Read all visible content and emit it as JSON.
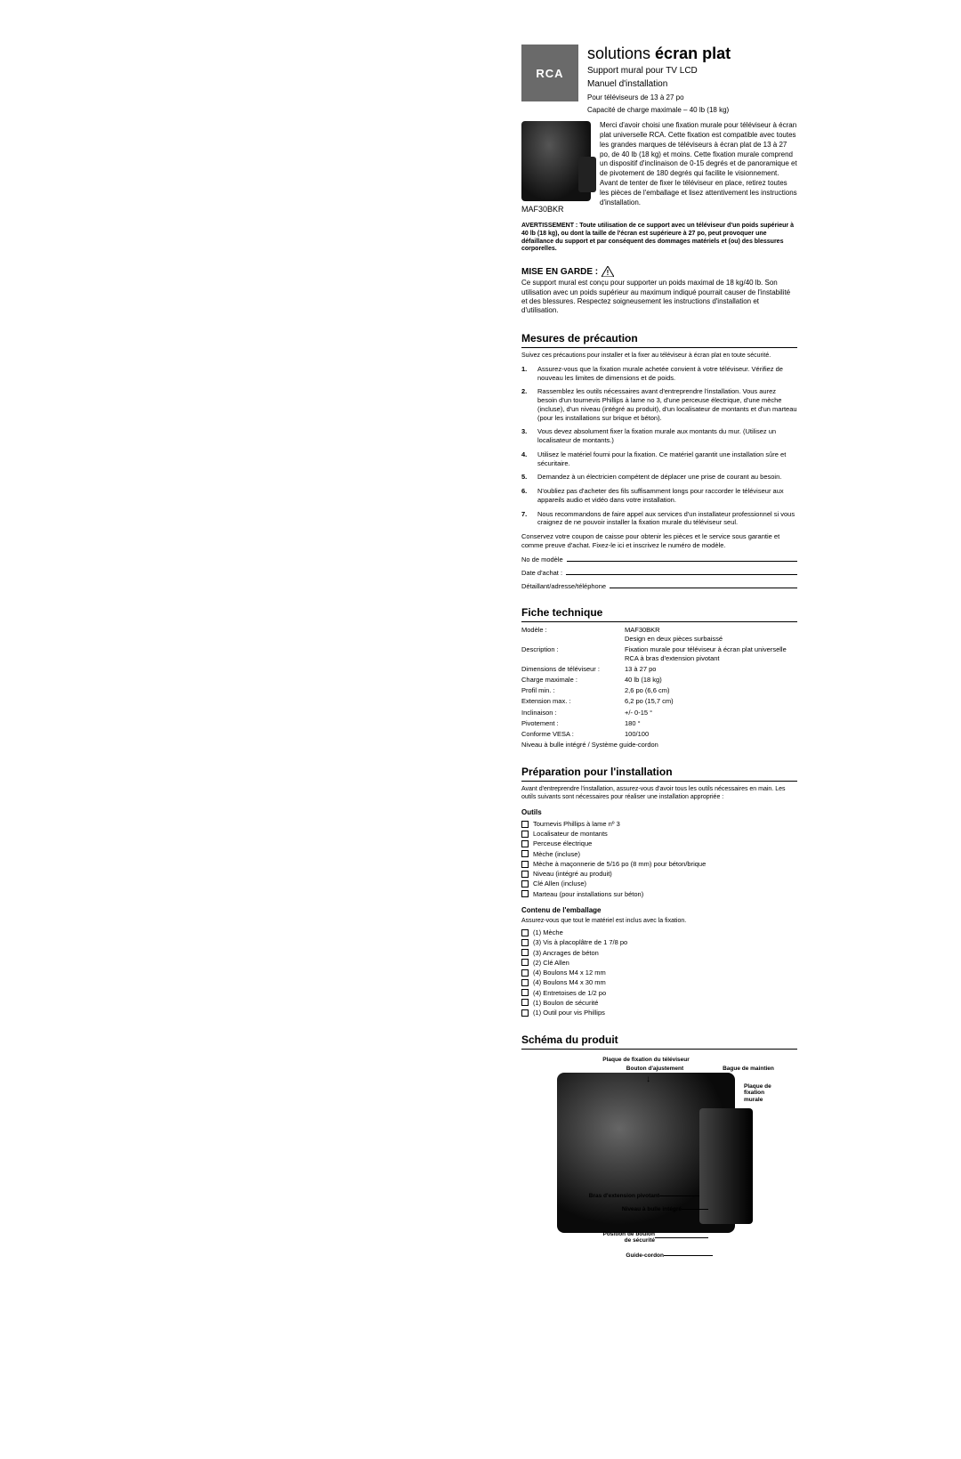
{
  "brand": "RCA",
  "title_light": "solutions ",
  "title_bold": "écran plat",
  "subtitle1": "Support mural pour TV LCD",
  "subtitle2": "Manuel d'installation",
  "size_line": "Pour téléviseurs de 13 à 27 po",
  "capacity_line": "Capacité de charge maximale –  40 lb (18 kg)",
  "model": "MAF30BKR",
  "intro": "Merci d'avoir choisi une fixation murale pour téléviseur à écran plat universelle RCA. Cette fixation est compatible avec toutes les grandes marques de téléviseurs à écran plat de 13 à 27 po, de 40 lb (18 kg) et moins. Cette fixation murale comprend un dispositif d'inclinaison de 0-15 degrés et de panoramique et de pivotement de 180 degrés qui facilite le visionnement. Avant de tenter de fixer le téléviseur en place, retirez toutes les pièces de l'emballage et lisez attentivement les instructions d'installation.",
  "warning_label": "AVERTISSEMENT : ",
  "warning_text": "Toute utilisation de ce support avec un téléviseur d'un poids supérieur à 40 lb (18 kg), ou dont la taille de l'écran est supérieure à 27 po, peut provoquer une défaillance du support et par conséquent des dommages matériels et (ou) des blessures corporelles.",
  "caution_title": "MISE EN GARDE :",
  "caution_body": "Ce support mural est conçu pour supporter un poids maximal de 18 kg/40 lb. Son utilisation avec un poids supérieur au maximum indiqué pourrait causer de l'instabilité et des blessures. Respectez soigneusement les instructions d'installation et d'utilisation.",
  "precautions_title": "Mesures de précaution",
  "precautions_intro": "Suivez ces précautions pour installer et la fixer au téléviseur à écran plat en toute sécurité.",
  "precautions": [
    "Assurez-vous que la fixation murale achetée convient à votre téléviseur. Vérifiez de nouveau les limites de dimensions et de poids.",
    "Rassemblez les outils nécessaires avant d'entreprendre l'installation. Vous aurez besoin d'un tournevis Phillips à lame no 3, d'une perceuse électrique, d'une mèche (incluse), d'un niveau (intégré au produit), d'un localisateur de montants et d'un marteau (pour les installations sur brique et béton).",
    "Vous devez absolument fixer la fixation murale aux montants du mur. (Utilisez un localisateur de montants.)",
    "Utilisez le matériel fourni pour la fixation. Ce matériel garantit une installation sûre et sécuritaire.",
    "Demandez à un électricien compétent de déplacer une prise de courant au besoin.",
    "N'oubliez pas d'acheter des fils suffisamment longs pour raccorder le téléviseur aux appareils audio et vidéo dans votre installation.",
    "Nous recommandons de faire appel aux services d'un installateur professionnel si vous craignez de ne pouvoir installer la fixation murale du téléviseur seul."
  ],
  "keep_receipt": "Conservez votre coupon de caisse pour obtenir les pièces et le service sous garantie et comme preuve d'achat. Fixez-le ici et inscrivez le numéro de modèle.",
  "fill_model": "No de modèle",
  "fill_date": "Date d'achat :",
  "fill_dealer": "Détaillant/adresse/téléphone",
  "spec_title": "Fiche technique",
  "specs": [
    {
      "k": "Modèle :",
      "v": "MAF30BKR\nDesign en deux pièces surbaissé"
    },
    {
      "k": "Description :",
      "v": "Fixation murale pour téléviseur à écran plat universelle RCA à bras d'extension pivotant"
    },
    {
      "k": "Dimensions de téléviseur :",
      "v": "13 à 27 po"
    },
    {
      "k": "Charge maximale :",
      "v": "40 lb (18 kg)"
    },
    {
      "k": "Profil min. :",
      "v": "2,6 po (6,6 cm)"
    },
    {
      "k": "Extension max. :",
      "v": "6,2 po (15,7 cm)"
    },
    {
      "k": "Inclinaison :",
      "v": "+/- 0-15 °"
    },
    {
      "k": "Pivotement :",
      "v": "180 °"
    },
    {
      "k": "Conforme VESA :",
      "v": "100/100"
    }
  ],
  "spec_footer": "Niveau à bulle intégré / Système guide-cordon",
  "prep_title": "Préparation pour l'installation",
  "prep_intro": "Avant d'entreprendre l'installation, assurez-vous d'avoir tous les outils nécessaires en main. Les outils suivants sont nécessaires pour réaliser une installation appropriée :",
  "tools_title": "Outils",
  "tools": [
    "Tournevis Phillips à lame nº 3",
    "Localisateur de montants",
    "Perceuse électrique",
    "Mèche (incluse)",
    "Mèche à maçonnerie de 5/16 po (8 mm) pour béton/brique",
    "Niveau (intégré au produit)",
    "Clé Allen (incluse)",
    "Marteau (pour installations sur béton)"
  ],
  "contents_title": "Contenu de l'emballage",
  "contents_intro": "Assurez-vous que tout le matériel est inclus avec la fixation.",
  "contents": [
    "(1) Mèche",
    "(3) Vis à placoplâtre de 1 7/8 po",
    "(3) Ancrages de béton",
    "(2) Clé Allen",
    "(4) Boulons M4 x 12 mm",
    "(4) Boulons M4 x 30 mm",
    "(4) Entretoises de 1/2 po",
    "(1) Boulon de sécurité",
    "(1) Outil pour vis Phillips"
  ],
  "diagram_title": "Schéma du produit",
  "diagram_labels": {
    "plate": "Plaque de fixation du téléviseur",
    "knob": "Bouton d'ajustement",
    "ring": "Bague de maintien",
    "wall": "Plaque de\nfixation\nmurale",
    "arm": "Bras d'extension pivotant",
    "level": "Niveau à bulle intégré",
    "bolt": "Position de boulon\nde sécurité",
    "cord": "Guide-cordon"
  }
}
